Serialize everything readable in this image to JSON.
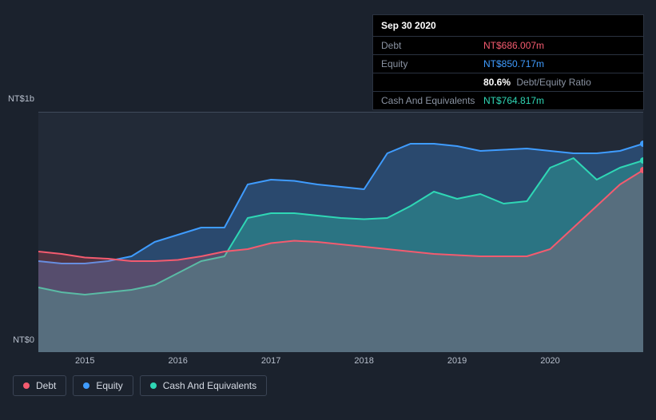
{
  "tooltip": {
    "date": "Sep 30 2020",
    "rows": [
      {
        "label": "Debt",
        "value": "NT$686.007m",
        "color": "#f45b6f"
      },
      {
        "label": "Equity",
        "value": "NT$850.717m",
        "color": "#3f9cff"
      }
    ],
    "ratio": {
      "pct": "80.6%",
      "text": "Debt/Equity Ratio"
    },
    "cash": {
      "label": "Cash And Equivalents",
      "value": "NT$764.817m",
      "color": "#2fd7b5"
    }
  },
  "chart": {
    "type": "area",
    "background_color": "#1b222d",
    "plot_background": "#222a37",
    "grid_color": "#404a5a",
    "y_axis": {
      "min": 0,
      "max": 1000,
      "labels": [
        "NT$0",
        "NT$1b"
      ]
    },
    "x_axis": {
      "min": 2014.5,
      "max": 2021.0,
      "ticks": [
        2015,
        2016,
        2017,
        2018,
        2019,
        2020
      ],
      "labels": [
        "2015",
        "2016",
        "2017",
        "2018",
        "2019",
        "2020"
      ]
    },
    "series": [
      {
        "name": "Debt",
        "color": "#f45b6f",
        "fill_opacity": 0.22,
        "line_width": 2,
        "x": [
          2014.5,
          2014.75,
          2015,
          2015.25,
          2015.5,
          2015.75,
          2016,
          2016.25,
          2016.5,
          2016.75,
          2017,
          2017.25,
          2017.5,
          2017.75,
          2018,
          2018.25,
          2018.5,
          2018.75,
          2019,
          2019.25,
          2019.5,
          2019.75,
          2020,
          2020.25,
          2020.5,
          2020.75,
          2021.0
        ],
        "y": [
          420,
          410,
          395,
          390,
          380,
          380,
          385,
          400,
          420,
          430,
          455,
          465,
          460,
          450,
          440,
          430,
          420,
          410,
          405,
          400,
          400,
          400,
          430,
          520,
          610,
          700,
          760
        ]
      },
      {
        "name": "Equity",
        "color": "#3f9cff",
        "fill_opacity": 0.28,
        "line_width": 2,
        "x": [
          2014.5,
          2014.75,
          2015,
          2015.25,
          2015.5,
          2015.75,
          2016,
          2016.25,
          2016.5,
          2016.75,
          2017,
          2017.25,
          2017.5,
          2017.75,
          2018,
          2018.25,
          2018.5,
          2018.75,
          2019,
          2019.25,
          2019.5,
          2019.75,
          2020,
          2020.25,
          2020.5,
          2020.75,
          2021.0
        ],
        "y": [
          380,
          370,
          370,
          380,
          400,
          460,
          490,
          520,
          520,
          700,
          720,
          715,
          700,
          690,
          680,
          830,
          870,
          870,
          860,
          840,
          845,
          850,
          840,
          830,
          830,
          840,
          870
        ]
      },
      {
        "name": "Cash And Equivalents",
        "color": "#2fd7b5",
        "fill_opacity": 0.3,
        "line_width": 2,
        "x": [
          2014.5,
          2014.75,
          2015,
          2015.25,
          2015.5,
          2015.75,
          2016,
          2016.25,
          2016.5,
          2016.75,
          2017,
          2017.25,
          2017.5,
          2017.75,
          2018,
          2018.25,
          2018.5,
          2018.75,
          2019,
          2019.25,
          2019.5,
          2019.75,
          2020,
          2020.25,
          2020.5,
          2020.75,
          2021.0
        ],
        "y": [
          270,
          250,
          240,
          250,
          260,
          280,
          330,
          380,
          400,
          560,
          580,
          580,
          570,
          560,
          555,
          560,
          610,
          670,
          640,
          660,
          620,
          630,
          770,
          810,
          720,
          770,
          800
        ]
      }
    ],
    "legend": {
      "items": [
        {
          "label": "Debt",
          "color": "#f45b6f"
        },
        {
          "label": "Equity",
          "color": "#3f9cff"
        },
        {
          "label": "Cash And Equivalents",
          "color": "#2fd7b5"
        }
      ]
    }
  }
}
